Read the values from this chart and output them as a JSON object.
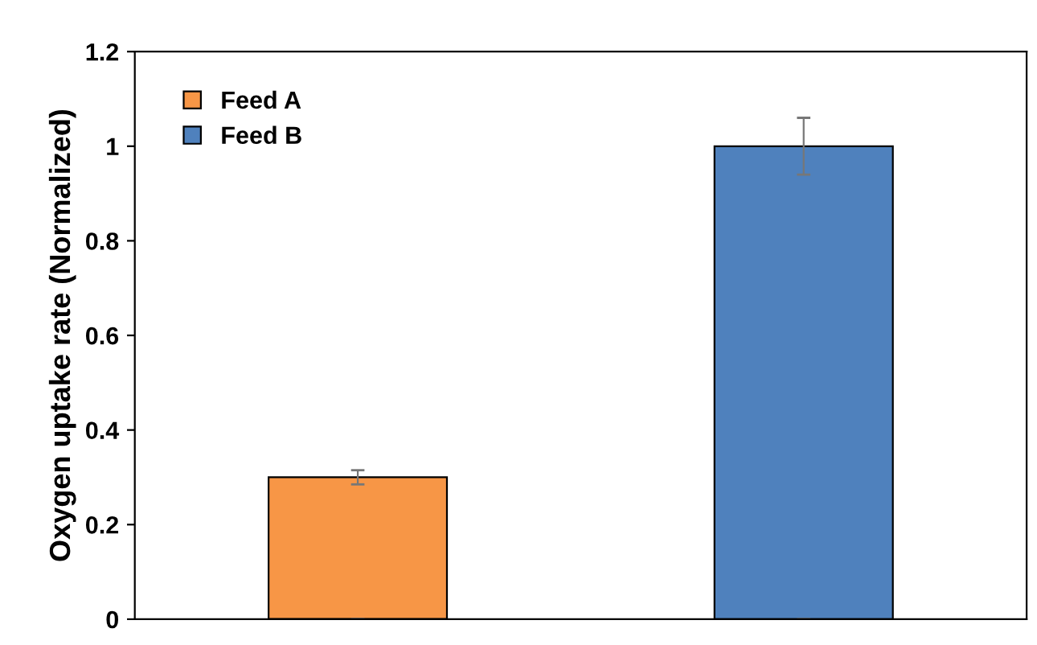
{
  "chart_data": {
    "type": "bar",
    "ylabel": "Oxygen uptake rate (Normalized)",
    "categories": [
      null,
      null
    ],
    "series": [
      {
        "name": "Feed A",
        "color": "#f79646",
        "values": [
          0.3,
          null
        ],
        "errors": [
          0.015,
          null
        ]
      },
      {
        "name": "Feed B",
        "color": "#4f81bd",
        "values": [
          null,
          1.0
        ],
        "errors": [
          null,
          0.06
        ]
      }
    ],
    "ylim": [
      0,
      1.2
    ],
    "yticks": [
      0,
      0.2,
      0.4,
      0.6,
      0.8,
      1,
      1.2
    ],
    "legend": "top left",
    "grid": false,
    "tick_labels": "y"
  }
}
